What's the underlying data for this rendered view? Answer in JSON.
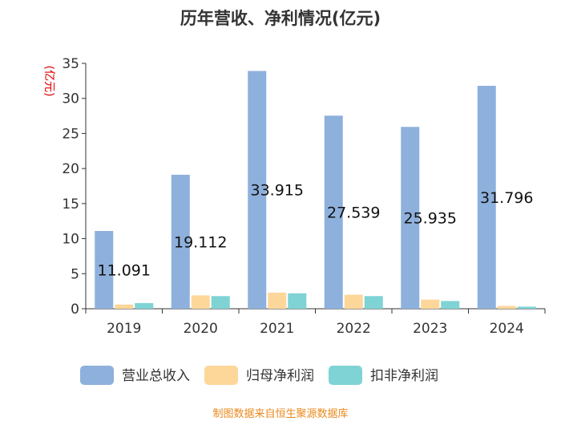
{
  "chart_data": {
    "type": "bar",
    "title": "历年营收、净利情况(亿元)",
    "ylabel": "(亿元)",
    "xlabel": "",
    "categories": [
      "2019",
      "2020",
      "2021",
      "2022",
      "2023",
      "2024"
    ],
    "ylim": [
      0,
      35
    ],
    "yticks": [
      0,
      5,
      10,
      15,
      20,
      25,
      30,
      35
    ],
    "grid": false,
    "legend_position": "bottom",
    "series": [
      {
        "name": "营业总收入",
        "color": "#8eb0dc",
        "values": [
          11.091,
          19.112,
          33.915,
          27.539,
          25.935,
          31.796
        ],
        "labels": [
          "11.091",
          "19.112",
          "33.915",
          "27.539",
          "25.935",
          "31.796"
        ]
      },
      {
        "name": "归母净利润",
        "color": "#fdd79a",
        "values": [
          0.6,
          1.9,
          2.3,
          2.0,
          1.3,
          0.4
        ]
      },
      {
        "name": "扣非净利润",
        "color": "#7fd3d4",
        "values": [
          0.8,
          1.8,
          2.2,
          1.8,
          1.1,
          0.3
        ]
      }
    ]
  },
  "source": "制图数据来自恒生聚源数据库"
}
